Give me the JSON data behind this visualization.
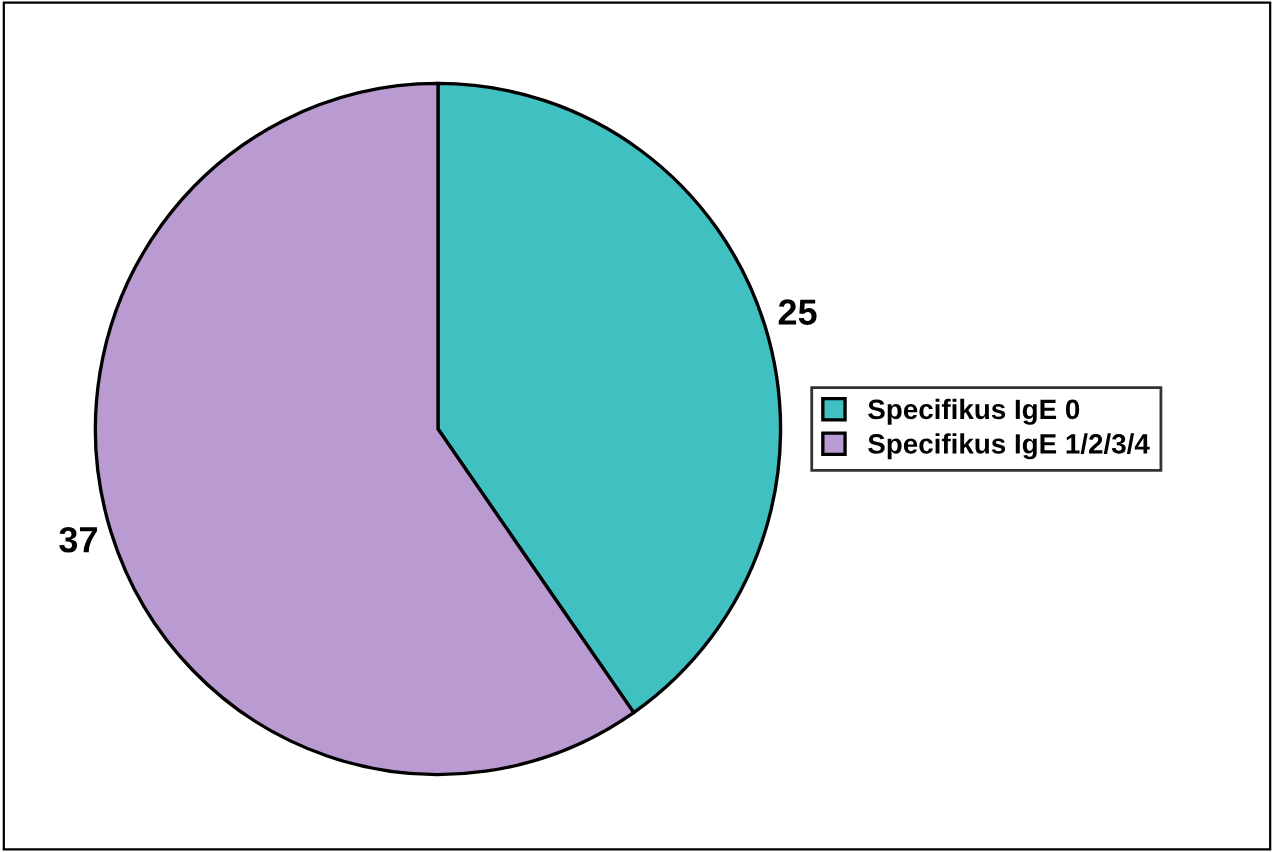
{
  "chart_data": {
    "type": "pie",
    "categories": [
      "Specifikus IgE 0",
      "Specifikus IgE 1/2/3/4"
    ],
    "values": [
      25,
      37
    ],
    "colors": [
      "#40c0c0",
      "#b99bd2"
    ],
    "data_labels": true,
    "legend": "right"
  }
}
